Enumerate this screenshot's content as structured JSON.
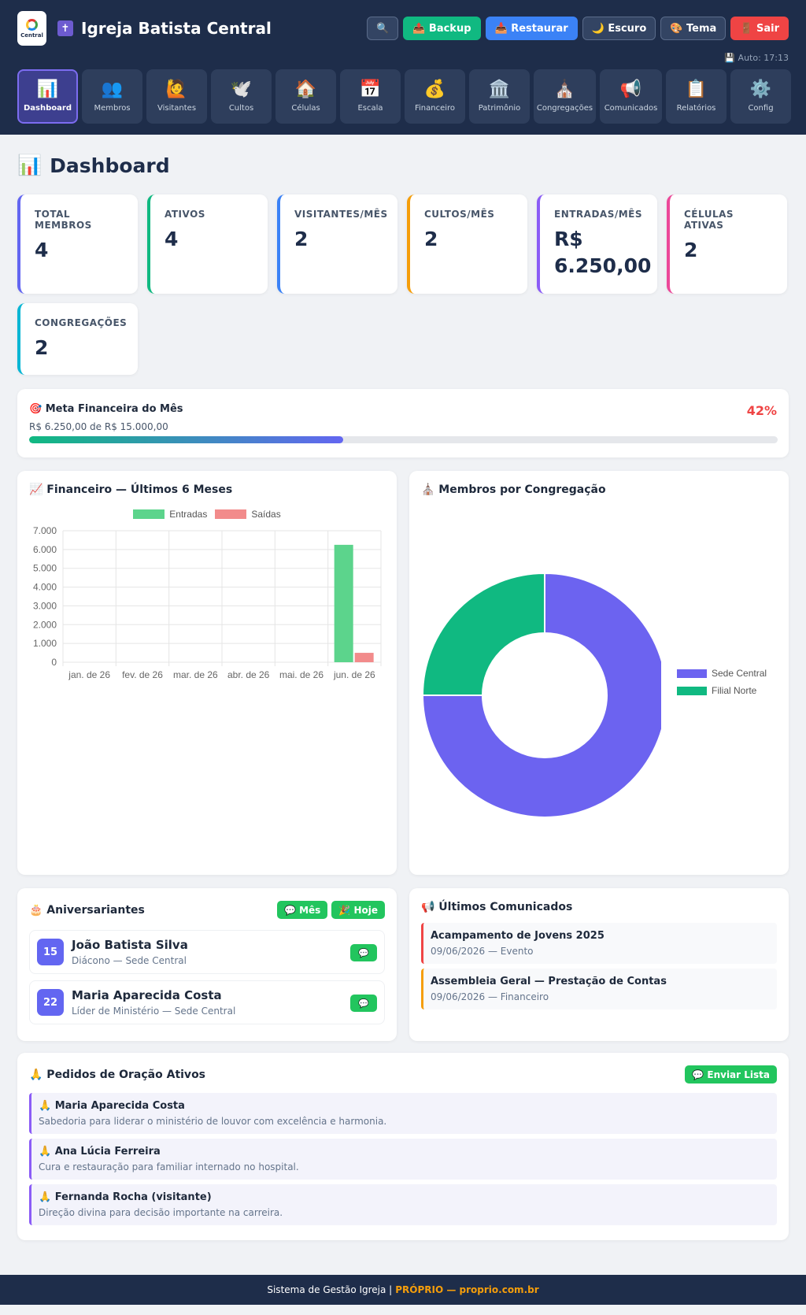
{
  "header": {
    "logo_text": "Central",
    "church_name": "Igreja Batista Central",
    "auto_save": "💾 Auto: 17:13",
    "buttons": {
      "search": "🔍",
      "backup": "📤 Backup",
      "restore": "📥 Restaurar",
      "dark": "🌙 Escuro",
      "theme": "🎨 Tema",
      "logout": "🚪 Sair"
    }
  },
  "nav": [
    {
      "icon": "📊",
      "label": "Dashboard",
      "active": true
    },
    {
      "icon": "👥",
      "label": "Membros"
    },
    {
      "icon": "🙋",
      "label": "Visitantes"
    },
    {
      "icon": "🕊️",
      "label": "Cultos"
    },
    {
      "icon": "🏠",
      "label": "Células"
    },
    {
      "icon": "📅",
      "label": "Escala"
    },
    {
      "icon": "💰",
      "label": "Financeiro"
    },
    {
      "icon": "🏛️",
      "label": "Patrimônio"
    },
    {
      "icon": "⛪",
      "label": "Congregações"
    },
    {
      "icon": "📢",
      "label": "Comunicados"
    },
    {
      "icon": "📋",
      "label": "Relatórios"
    },
    {
      "icon": "⚙️",
      "label": "Config"
    }
  ],
  "page": {
    "icon": "📊",
    "title": "Dashboard"
  },
  "stats": [
    {
      "label": "TOTAL MEMBROS",
      "value": "4",
      "color": "#6366f1"
    },
    {
      "label": "ATIVOS",
      "value": "4",
      "color": "#10b981"
    },
    {
      "label": "VISITANTES/MÊS",
      "value": "2",
      "color": "#3b82f6"
    },
    {
      "label": "CULTOS/MÊS",
      "value": "2",
      "color": "#f59e0b"
    },
    {
      "label": "ENTRADAS/MÊS",
      "value": "R$ 6.250,00",
      "color": "#8b5cf6"
    },
    {
      "label": "CÉLULAS ATIVAS",
      "value": "2",
      "color": "#ec4899"
    },
    {
      "label": "CONGREGAÇÕES",
      "value": "2",
      "color": "#06b6d4"
    }
  ],
  "goal": {
    "title": "🎯 Meta Financeira do Mês",
    "subtitle": "R$ 6.250,00 de R$ 15.000,00",
    "percent_label": "42%",
    "progress": 0.42
  },
  "finance_chart": {
    "title": "📈 Financeiro — Últimos 6 Meses"
  },
  "members_chart": {
    "title": "⛪ Membros por Congregação"
  },
  "chart_data": [
    {
      "type": "bar",
      "categories": [
        "jan. de 26",
        "fev. de 26",
        "mar. de 26",
        "abr. de 26",
        "mai. de 26",
        "jun. de 26"
      ],
      "series": [
        {
          "name": "Entradas",
          "values": [
            0,
            0,
            0,
            0,
            0,
            6250
          ],
          "color": "#5cd48c"
        },
        {
          "name": "Saídas",
          "values": [
            0,
            0,
            0,
            0,
            0,
            500
          ],
          "color": "#f28b8b"
        }
      ],
      "yticks": [
        "0",
        "1.000",
        "2.000",
        "3.000",
        "4.000",
        "5.000",
        "6.000",
        "7.000"
      ],
      "ylim": [
        0,
        7000
      ],
      "grid": true,
      "legend": "top"
    },
    {
      "type": "pie",
      "labels": [
        "Sede Central",
        "Filial Norte"
      ],
      "values": [
        3,
        1
      ],
      "colors": [
        "#6c63f0",
        "#10b981"
      ],
      "legend": "right"
    }
  ],
  "birthdays": {
    "title": "🎂 Aniversariantes",
    "btn_month": "💬 Mês",
    "btn_today": "🎉 Hoje",
    "wa_icon": "💬",
    "items": [
      {
        "day": "15",
        "name": "João Batista Silva",
        "sub": "Diácono — Sede Central"
      },
      {
        "day": "22",
        "name": "Maria Aparecida Costa",
        "sub": "Líder de Ministério — Sede Central"
      }
    ]
  },
  "news": {
    "title": "📢 Últimos Comunicados",
    "items": [
      {
        "title": "Acampamento de Jovens 2025",
        "sub": "09/06/2026 — Evento"
      },
      {
        "title": "Assembleia Geral — Prestação de Contas",
        "sub": "09/06/2026 — Financeiro"
      }
    ]
  },
  "prayers": {
    "title": "🙏 Pedidos de Oração Ativos",
    "send_btn": "💬 Enviar Lista",
    "items": [
      {
        "name": "🙏 Maria Aparecida Costa",
        "text": "Sabedoria para liderar o ministério de louvor com excelência e harmonia."
      },
      {
        "name": "🙏 Ana Lúcia Ferreira",
        "text": "Cura e restauração para familiar internado no hospital."
      },
      {
        "name": "🙏 Fernanda Rocha (visitante)",
        "text": "Direção divina para decisão importante na carreira."
      }
    ]
  },
  "footer": {
    "text": "Sistema de Gestão Igreja |",
    "brand": "PRÓPRIO — proprio.com.br"
  }
}
